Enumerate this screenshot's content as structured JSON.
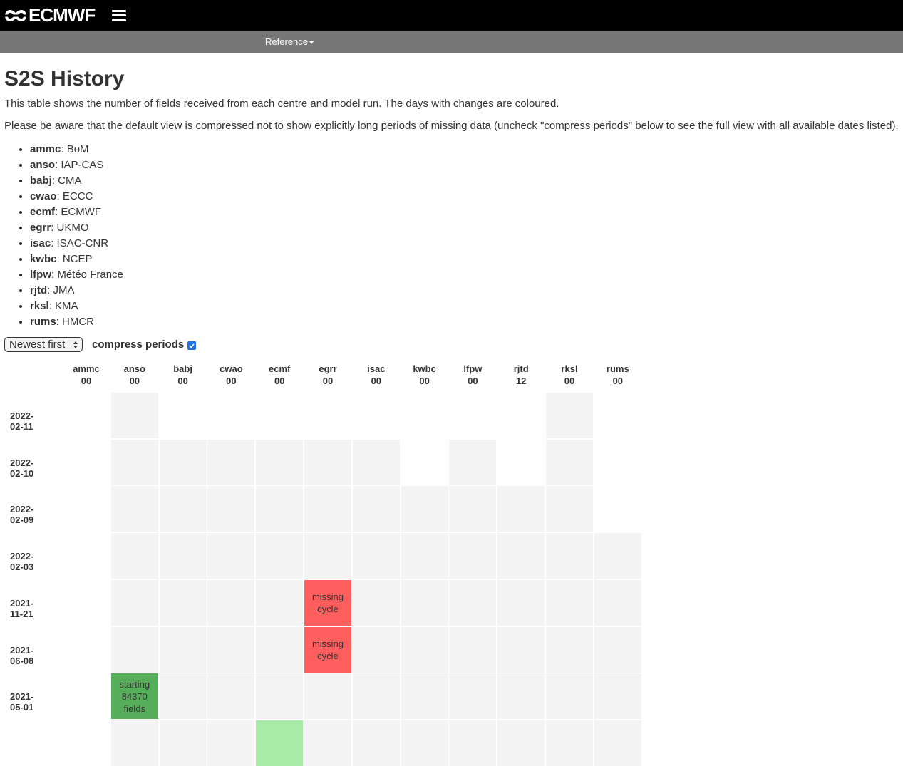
{
  "header": {
    "brand": "ECMWF",
    "logo_icon": "ecmwf-logo-icon",
    "menu_icon": "hamburger-icon"
  },
  "subnav": {
    "items": [
      {
        "label": "Reference"
      }
    ]
  },
  "page": {
    "title": "S2S History",
    "intro": "This table shows the number of fields received from each centre and model run. The days with changes are coloured.",
    "notice": "Please be aware that the default view is compressed not to show explicitly long periods of missing data (uncheck \"compress periods\" below to see the full view with all available dates listed)."
  },
  "centres": [
    {
      "code": "ammc",
      "name": ": BoM"
    },
    {
      "code": "anso",
      "name": ": IAP-CAS"
    },
    {
      "code": "babj",
      "name": ": CMA"
    },
    {
      "code": "cwao",
      "name": ": ECCC"
    },
    {
      "code": "ecmf",
      "name": ": ECMWF"
    },
    {
      "code": "egrr",
      "name": ": UKMO"
    },
    {
      "code": "isac",
      "name": ": ISAC-CNR"
    },
    {
      "code": "kwbc",
      "name": ": NCEP"
    },
    {
      "code": "lfpw",
      "name": ": Météo France"
    },
    {
      "code": "rjtd",
      "name": ": JMA"
    },
    {
      "code": "rksl",
      "name": ": KMA"
    },
    {
      "code": "rums",
      "name": ": HMCR"
    }
  ],
  "controls": {
    "sort_value": "Newest first",
    "compress_label": "compress periods",
    "compress_checked": true
  },
  "table": {
    "columns": [
      {
        "centre": "ammc",
        "run": "00"
      },
      {
        "centre": "anso",
        "run": "00"
      },
      {
        "centre": "babj",
        "run": "00"
      },
      {
        "centre": "cwao",
        "run": "00"
      },
      {
        "centre": "ecmf",
        "run": "00"
      },
      {
        "centre": "egrr",
        "run": "00"
      },
      {
        "centre": "isac",
        "run": "00"
      },
      {
        "centre": "kwbc",
        "run": "00"
      },
      {
        "centre": "lfpw",
        "run": "00"
      },
      {
        "centre": "rjtd",
        "run": "12"
      },
      {
        "centre": "rksl",
        "run": "00"
      },
      {
        "centre": "rums",
        "run": "00"
      }
    ],
    "rows": [
      {
        "date": "2022-02-11",
        "cells": [
          "",
          "grey",
          "",
          "",
          "",
          "",
          "",
          "",
          "",
          "",
          "grey",
          ""
        ]
      },
      {
        "date": "2022-02-10",
        "cells": [
          "",
          "grey",
          "grey",
          "grey",
          "grey",
          "grey",
          "grey",
          "",
          "grey",
          "",
          "grey",
          ""
        ]
      },
      {
        "date": "2022-02-09",
        "cells": [
          "",
          "grey",
          "grey",
          "grey",
          "grey",
          "grey",
          "grey",
          "grey",
          "grey",
          "grey",
          "grey",
          ""
        ]
      },
      {
        "date": "2022-02-03",
        "cells": [
          "",
          "grey",
          "grey",
          "grey",
          "grey",
          "grey",
          "grey",
          "grey",
          "grey",
          "grey",
          "grey",
          "grey"
        ]
      },
      {
        "date": "2021-11-21",
        "cells": [
          "",
          "grey",
          "grey",
          "grey",
          "grey",
          "red",
          "grey",
          "grey",
          "grey",
          "grey",
          "grey",
          "grey"
        ]
      },
      {
        "date": "2021-06-08",
        "cells": [
          "",
          "grey",
          "grey",
          "grey",
          "grey",
          "red",
          "grey",
          "grey",
          "grey",
          "grey",
          "grey",
          "grey"
        ]
      },
      {
        "date": "2021-05-01",
        "cells": [
          "",
          "green",
          "grey",
          "grey",
          "grey",
          "grey",
          "grey",
          "grey",
          "grey",
          "grey",
          "grey",
          "grey"
        ]
      }
    ],
    "cell_texts": {
      "2021-11-21|egrr": [
        "missing",
        "cycle"
      ],
      "2021-06-08|egrr": [
        "missing",
        "cycle"
      ],
      "2021-05-01|anso": [
        "starting",
        "84370",
        "fields"
      ]
    },
    "partial_next_row": [
      "",
      "grey",
      "grey",
      "grey",
      "lightgreen",
      "grey",
      "grey",
      "grey",
      "grey",
      "grey",
      "grey",
      "grey"
    ]
  },
  "colors": {
    "missing": "#ff5e5e",
    "starting": "#56ae5a",
    "empty": "#f4f4f4",
    "topbar": "#000000",
    "subnav": "#777777",
    "checkbox": "#1a73e8"
  }
}
